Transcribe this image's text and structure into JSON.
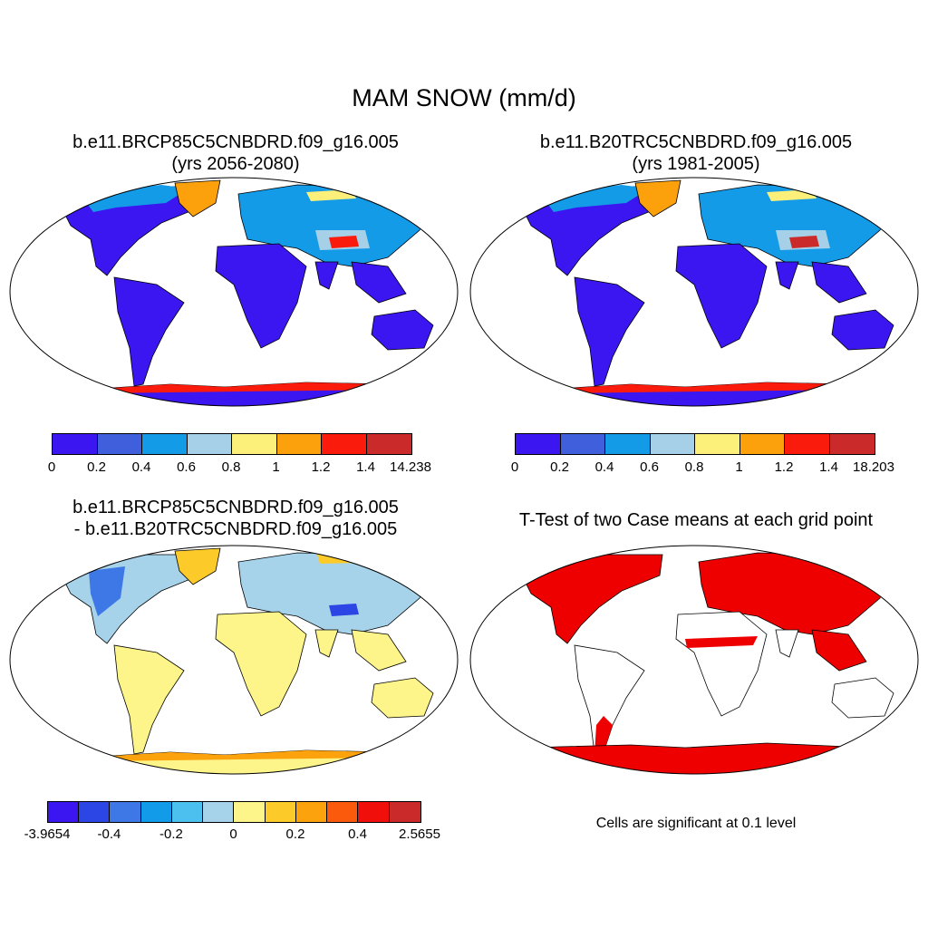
{
  "title": "MAM SNOW (mm/d)",
  "panels": {
    "p1": {
      "title_line1": "b.e11.BRCP85C5CNBDRD.f09_g16.005",
      "title_line2": "(yrs 2056-2080)",
      "colorbar": {
        "colors": [
          "#3b16f0",
          "#3f5fdc",
          "#149be8",
          "#a6cfe8",
          "#fdf07a",
          "#fca10c",
          "#fb1b0c",
          "#cb2a2a"
        ],
        "labels": [
          "0",
          "0.2",
          "0.4",
          "0.6",
          "0.8",
          "1",
          "1.2",
          "1.4",
          "14.238"
        ]
      }
    },
    "p2": {
      "title_line1": "b.e11.B20TRC5CNBDRD.f09_g16.005",
      "title_line2": "(yrs 1981-2005)",
      "colorbar": {
        "colors": [
          "#3b16f0",
          "#3f5fdc",
          "#149be8",
          "#a6cfe8",
          "#fdf07a",
          "#fca10c",
          "#fb1b0c",
          "#cb2a2a"
        ],
        "labels": [
          "0",
          "0.2",
          "0.4",
          "0.6",
          "0.8",
          "1",
          "1.2",
          "1.4",
          "18.203"
        ]
      }
    },
    "p3": {
      "title_line1": "b.e11.BRCP85C5CNBDRD.f09_g16.005",
      "title_line2": "- b.e11.B20TRC5CNBDRD.f09_g16.005",
      "colorbar": {
        "colors": [
          "#3b16f0",
          "#2c46e6",
          "#3d78e6",
          "#129be8",
          "#4cc1ef",
          "#a6d3ea",
          "#fdf48a",
          "#fdcb29",
          "#fca20c",
          "#fb5a0c",
          "#f10f0c",
          "#cb2a2a"
        ],
        "labels": [
          "-3.9654",
          "-0.4",
          "-0.2",
          "0",
          "0.2",
          "0.4",
          "2.5655"
        ]
      }
    },
    "p4": {
      "title_line1": "T-Test of two Case means at each grid point",
      "note": "Cells are significant at 0.1 level"
    }
  },
  "colors": {
    "land_outline": "#000000",
    "significant": "#ee0000"
  }
}
